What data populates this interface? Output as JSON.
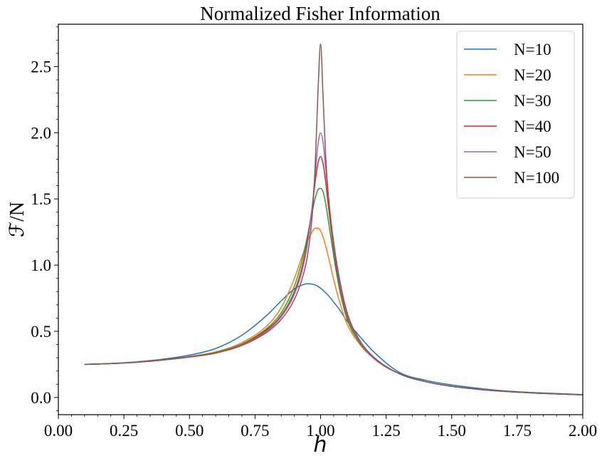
{
  "chart_data": {
    "type": "line",
    "title": "Normalized Fisher Information",
    "xlabel": "h",
    "ylabel": "ℱ/N",
    "xlim": [
      0.0,
      2.0
    ],
    "ylim": [
      -0.13,
      2.82
    ],
    "grid": false,
    "legend_placement": "top-right",
    "x_ticks": [
      "0.00",
      "0.25",
      "0.50",
      "0.75",
      "1.00",
      "1.25",
      "1.50",
      "1.75",
      "2.00"
    ],
    "y_ticks": [
      "0.0",
      "0.5",
      "1.0",
      "1.5",
      "2.0",
      "2.5"
    ],
    "x": [
      0.1,
      0.2,
      0.3,
      0.4,
      0.5,
      0.6,
      0.7,
      0.8,
      0.85,
      0.9,
      0.93,
      0.95,
      0.97,
      0.98,
      0.99,
      1.0,
      1.01,
      1.02,
      1.03,
      1.05,
      1.07,
      1.1,
      1.15,
      1.2,
      1.3,
      1.4,
      1.5,
      1.6,
      1.7,
      1.8,
      1.9,
      2.0
    ],
    "series": [
      {
        "name": "N=10",
        "color": "#1f77b4",
        "values": [
          0.25,
          0.257,
          0.27,
          0.29,
          0.32,
          0.37,
          0.47,
          0.63,
          0.73,
          0.82,
          0.85,
          0.86,
          0.855,
          0.85,
          0.84,
          0.825,
          0.81,
          0.79,
          0.77,
          0.72,
          0.67,
          0.58,
          0.46,
          0.35,
          0.19,
          0.13,
          0.095,
          0.07,
          0.05,
          0.038,
          0.03,
          0.022
        ]
      },
      {
        "name": "N=20",
        "color": "#ff7f0e",
        "values": [
          0.25,
          0.256,
          0.268,
          0.285,
          0.31,
          0.345,
          0.415,
          0.55,
          0.68,
          0.9,
          1.07,
          1.18,
          1.26,
          1.28,
          1.28,
          1.26,
          1.21,
          1.14,
          1.06,
          0.89,
          0.74,
          0.56,
          0.4,
          0.3,
          0.18,
          0.12,
          0.085,
          0.063,
          0.047,
          0.036,
          0.028,
          0.02
        ]
      },
      {
        "name": "N=30",
        "color": "#2ca02c",
        "values": [
          0.25,
          0.256,
          0.267,
          0.284,
          0.308,
          0.34,
          0.405,
          0.53,
          0.64,
          0.84,
          1.04,
          1.22,
          1.42,
          1.51,
          1.57,
          1.58,
          1.55,
          1.46,
          1.33,
          1.07,
          0.84,
          0.6,
          0.41,
          0.3,
          0.18,
          0.12,
          0.085,
          0.062,
          0.046,
          0.035,
          0.027,
          0.02
        ]
      },
      {
        "name": "N=40",
        "color": "#d62728",
        "values": [
          0.25,
          0.256,
          0.267,
          0.284,
          0.307,
          0.338,
          0.4,
          0.52,
          0.62,
          0.8,
          0.99,
          1.19,
          1.47,
          1.64,
          1.77,
          1.82,
          1.76,
          1.62,
          1.44,
          1.12,
          0.87,
          0.62,
          0.42,
          0.3,
          0.18,
          0.12,
          0.084,
          0.062,
          0.046,
          0.035,
          0.027,
          0.02
        ]
      },
      {
        "name": "N=50",
        "color": "#9467bd",
        "values": [
          0.25,
          0.256,
          0.267,
          0.283,
          0.306,
          0.337,
          0.398,
          0.51,
          0.61,
          0.78,
          0.96,
          1.16,
          1.48,
          1.7,
          1.91,
          2.0,
          1.92,
          1.72,
          1.5,
          1.15,
          0.89,
          0.63,
          0.42,
          0.3,
          0.18,
          0.12,
          0.084,
          0.062,
          0.046,
          0.035,
          0.027,
          0.02
        ]
      },
      {
        "name": "N=100",
        "color": "#8c564b",
        "values": [
          0.25,
          0.256,
          0.266,
          0.283,
          0.305,
          0.335,
          0.393,
          0.5,
          0.59,
          0.74,
          0.9,
          1.07,
          1.42,
          1.78,
          2.3,
          2.67,
          2.25,
          1.8,
          1.52,
          1.17,
          0.92,
          0.65,
          0.43,
          0.31,
          0.18,
          0.12,
          0.084,
          0.062,
          0.046,
          0.035,
          0.027,
          0.02
        ]
      }
    ]
  }
}
